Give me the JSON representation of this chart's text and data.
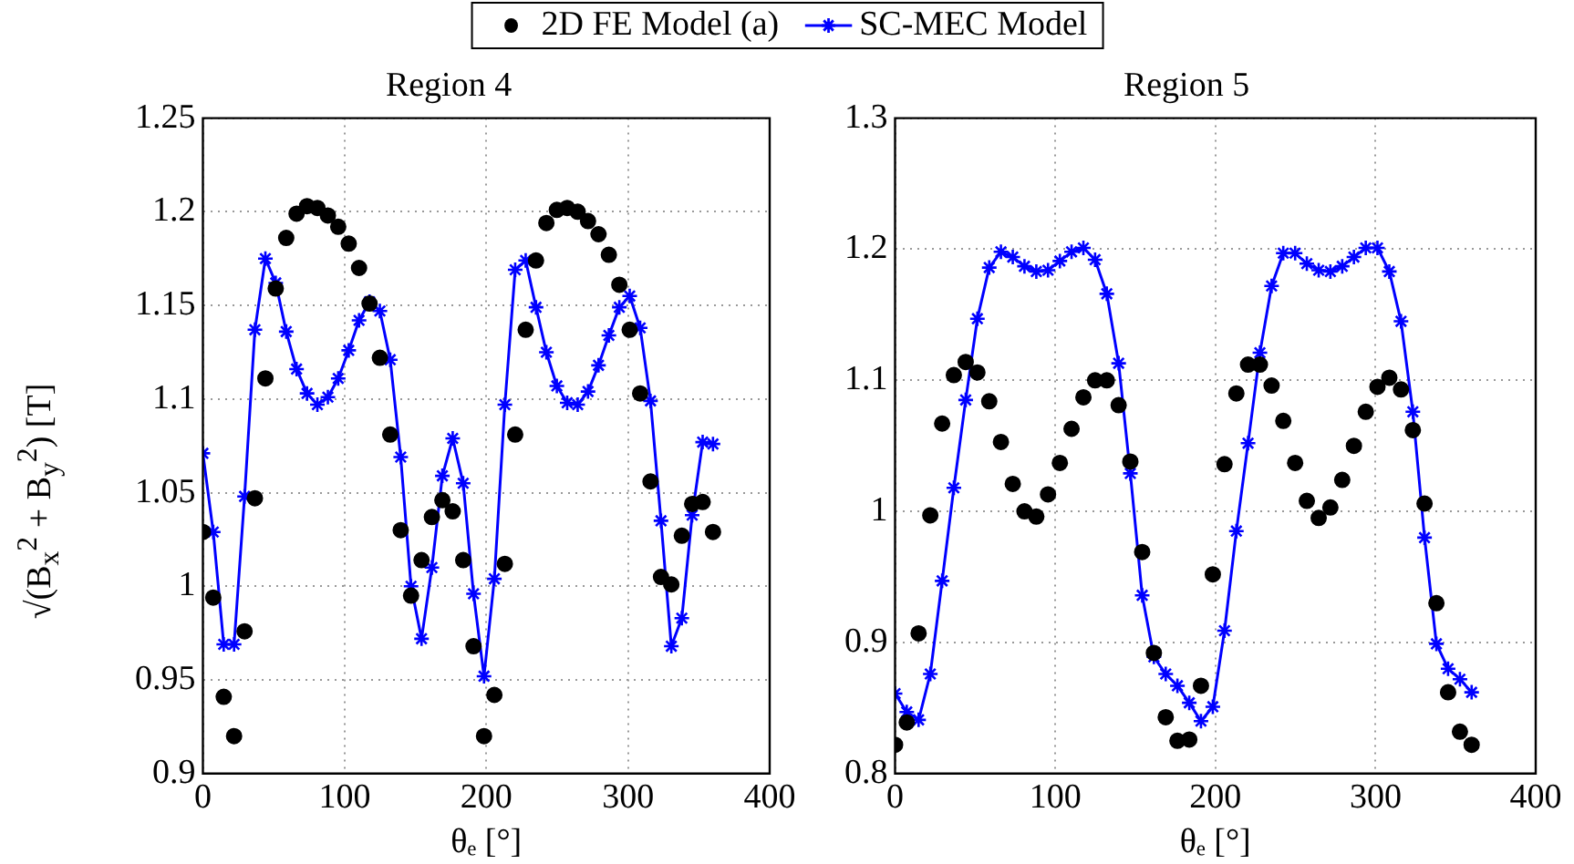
{
  "chart_data": [
    {
      "type": "line",
      "title": "Region 4",
      "xlabel": "θₑ [°]",
      "ylabel": "√(B$_{x}$$^{2}$ + B$_{y}$$^{2}$) [T]",
      "x": [
        0,
        7.3,
        14.7,
        22.0,
        29.4,
        36.7,
        44.1,
        51.4,
        58.8,
        66.1,
        73.5,
        80.8,
        88.2,
        95.5,
        102.9,
        110.2,
        117.6,
        124.9,
        132.2,
        139.6,
        146.9,
        154.3,
        161.6,
        169.0,
        176.3,
        183.7,
        191.0,
        198.4,
        205.7,
        213.1,
        220.4,
        227.8,
        235.1,
        242.4,
        249.8,
        257.1,
        264.5,
        271.8,
        279.2,
        286.5,
        293.9,
        301.2,
        308.6,
        315.9,
        323.3,
        330.6,
        338.0,
        345.3,
        352.7,
        360.0
      ],
      "series": [
        {
          "name": "2D FE Model (a)",
          "type": "scatter",
          "marker": "circle",
          "color": "#000000",
          "values": [
            1.029,
            0.994,
            0.941,
            0.92,
            0.976,
            1.047,
            1.111,
            1.159,
            1.186,
            1.199,
            1.203,
            1.202,
            1.198,
            1.192,
            1.183,
            1.17,
            1.151,
            1.122,
            1.081,
            1.03,
            0.995,
            1.014,
            1.037,
            1.046,
            1.04,
            1.014,
            0.968,
            0.92,
            0.942,
            1.012,
            1.081,
            1.137,
            1.174,
            1.194,
            1.201,
            1.202,
            1.2,
            1.195,
            1.188,
            1.177,
            1.161,
            1.137,
            1.103,
            1.056,
            1.005,
            1.001,
            1.027,
            1.044,
            1.045,
            1.029
          ]
        },
        {
          "name": "SC-MEC Model",
          "type": "line",
          "marker": "cross",
          "line_style": "solid",
          "color": "#0000ff",
          "values": [
            1.071,
            1.029,
            0.969,
            0.969,
            1.048,
            1.137,
            1.175,
            1.162,
            1.136,
            1.116,
            1.103,
            1.097,
            1.101,
            1.111,
            1.126,
            1.142,
            1.152,
            1.147,
            1.121,
            1.069,
            1.0,
            0.972,
            1.01,
            1.059,
            1.079,
            1.055,
            0.996,
            0.952,
            1.004,
            1.097,
            1.169,
            1.174,
            1.149,
            1.125,
            1.107,
            1.098,
            1.097,
            1.104,
            1.118,
            1.134,
            1.149,
            1.155,
            1.138,
            1.099,
            1.035,
            0.968,
            0.983,
            1.038,
            1.077,
            1.076
          ]
        }
      ],
      "xlim": [
        0,
        400
      ],
      "xticks": [
        0,
        100,
        200,
        300,
        400
      ],
      "ylim": [
        0.9,
        1.25
      ],
      "yticks": [
        0.9,
        0.95,
        1,
        1.05,
        1.1,
        1.15,
        1.2,
        1.25
      ],
      "grid": true,
      "legend": "top"
    },
    {
      "type": "line",
      "title": "Region 5",
      "xlabel": "θₑ [°]",
      "x": [
        0,
        7.3,
        14.7,
        22.0,
        29.4,
        36.7,
        44.1,
        51.4,
        58.8,
        66.1,
        73.5,
        80.8,
        88.2,
        95.5,
        102.9,
        110.2,
        117.6,
        124.9,
        132.2,
        139.6,
        146.9,
        154.3,
        161.6,
        169.0,
        176.3,
        183.7,
        191.0,
        198.4,
        205.7,
        213.1,
        220.4,
        227.8,
        235.1,
        242.4,
        249.8,
        257.1,
        264.5,
        271.8,
        279.2,
        286.5,
        293.9,
        301.2,
        308.6,
        315.9,
        323.3,
        330.6,
        338.0,
        345.3,
        352.7,
        360.0
      ],
      "series": [
        {
          "type": "scatter",
          "marker": "circle",
          "color": "#000000",
          "values": [
            0.822,
            0.839,
            0.907,
            0.997,
            1.067,
            1.104,
            1.114,
            1.106,
            1.084,
            1.053,
            1.021,
            1.0,
            0.996,
            1.013,
            1.037,
            1.063,
            1.087,
            1.1,
            1.1,
            1.081,
            1.038,
            0.969,
            0.892,
            0.843,
            0.825,
            0.826,
            0.867,
            0.952,
            1.036,
            1.09,
            1.112,
            1.112,
            1.096,
            1.069,
            1.037,
            1.008,
            0.995,
            1.003,
            1.024,
            1.05,
            1.076,
            1.095,
            1.102,
            1.093,
            1.062,
            1.006,
            0.93,
            0.862,
            0.832,
            0.822
          ]
        },
        {
          "type": "line",
          "marker": "cross",
          "line_style": "solid",
          "color": "#0000ff",
          "values": [
            0.861,
            0.847,
            0.841,
            0.876,
            0.947,
            1.018,
            1.085,
            1.147,
            1.186,
            1.198,
            1.194,
            1.187,
            1.183,
            1.184,
            1.191,
            1.198,
            1.201,
            1.192,
            1.166,
            1.113,
            1.029,
            0.936,
            0.889,
            0.876,
            0.867,
            0.854,
            0.84,
            0.851,
            0.909,
            0.985,
            1.052,
            1.121,
            1.172,
            1.197,
            1.197,
            1.189,
            1.184,
            1.183,
            1.187,
            1.194,
            1.201,
            1.201,
            1.183,
            1.145,
            1.076,
            0.98,
            0.899,
            0.88,
            0.872,
            0.862
          ]
        }
      ],
      "xlim": [
        0,
        400
      ],
      "xticks": [
        0,
        100,
        200,
        300,
        400
      ],
      "ylim": [
        0.8,
        1.3
      ],
      "yticks": [
        0.8,
        0.9,
        1,
        1.1,
        1.2,
        1.3
      ],
      "grid": true
    }
  ]
}
